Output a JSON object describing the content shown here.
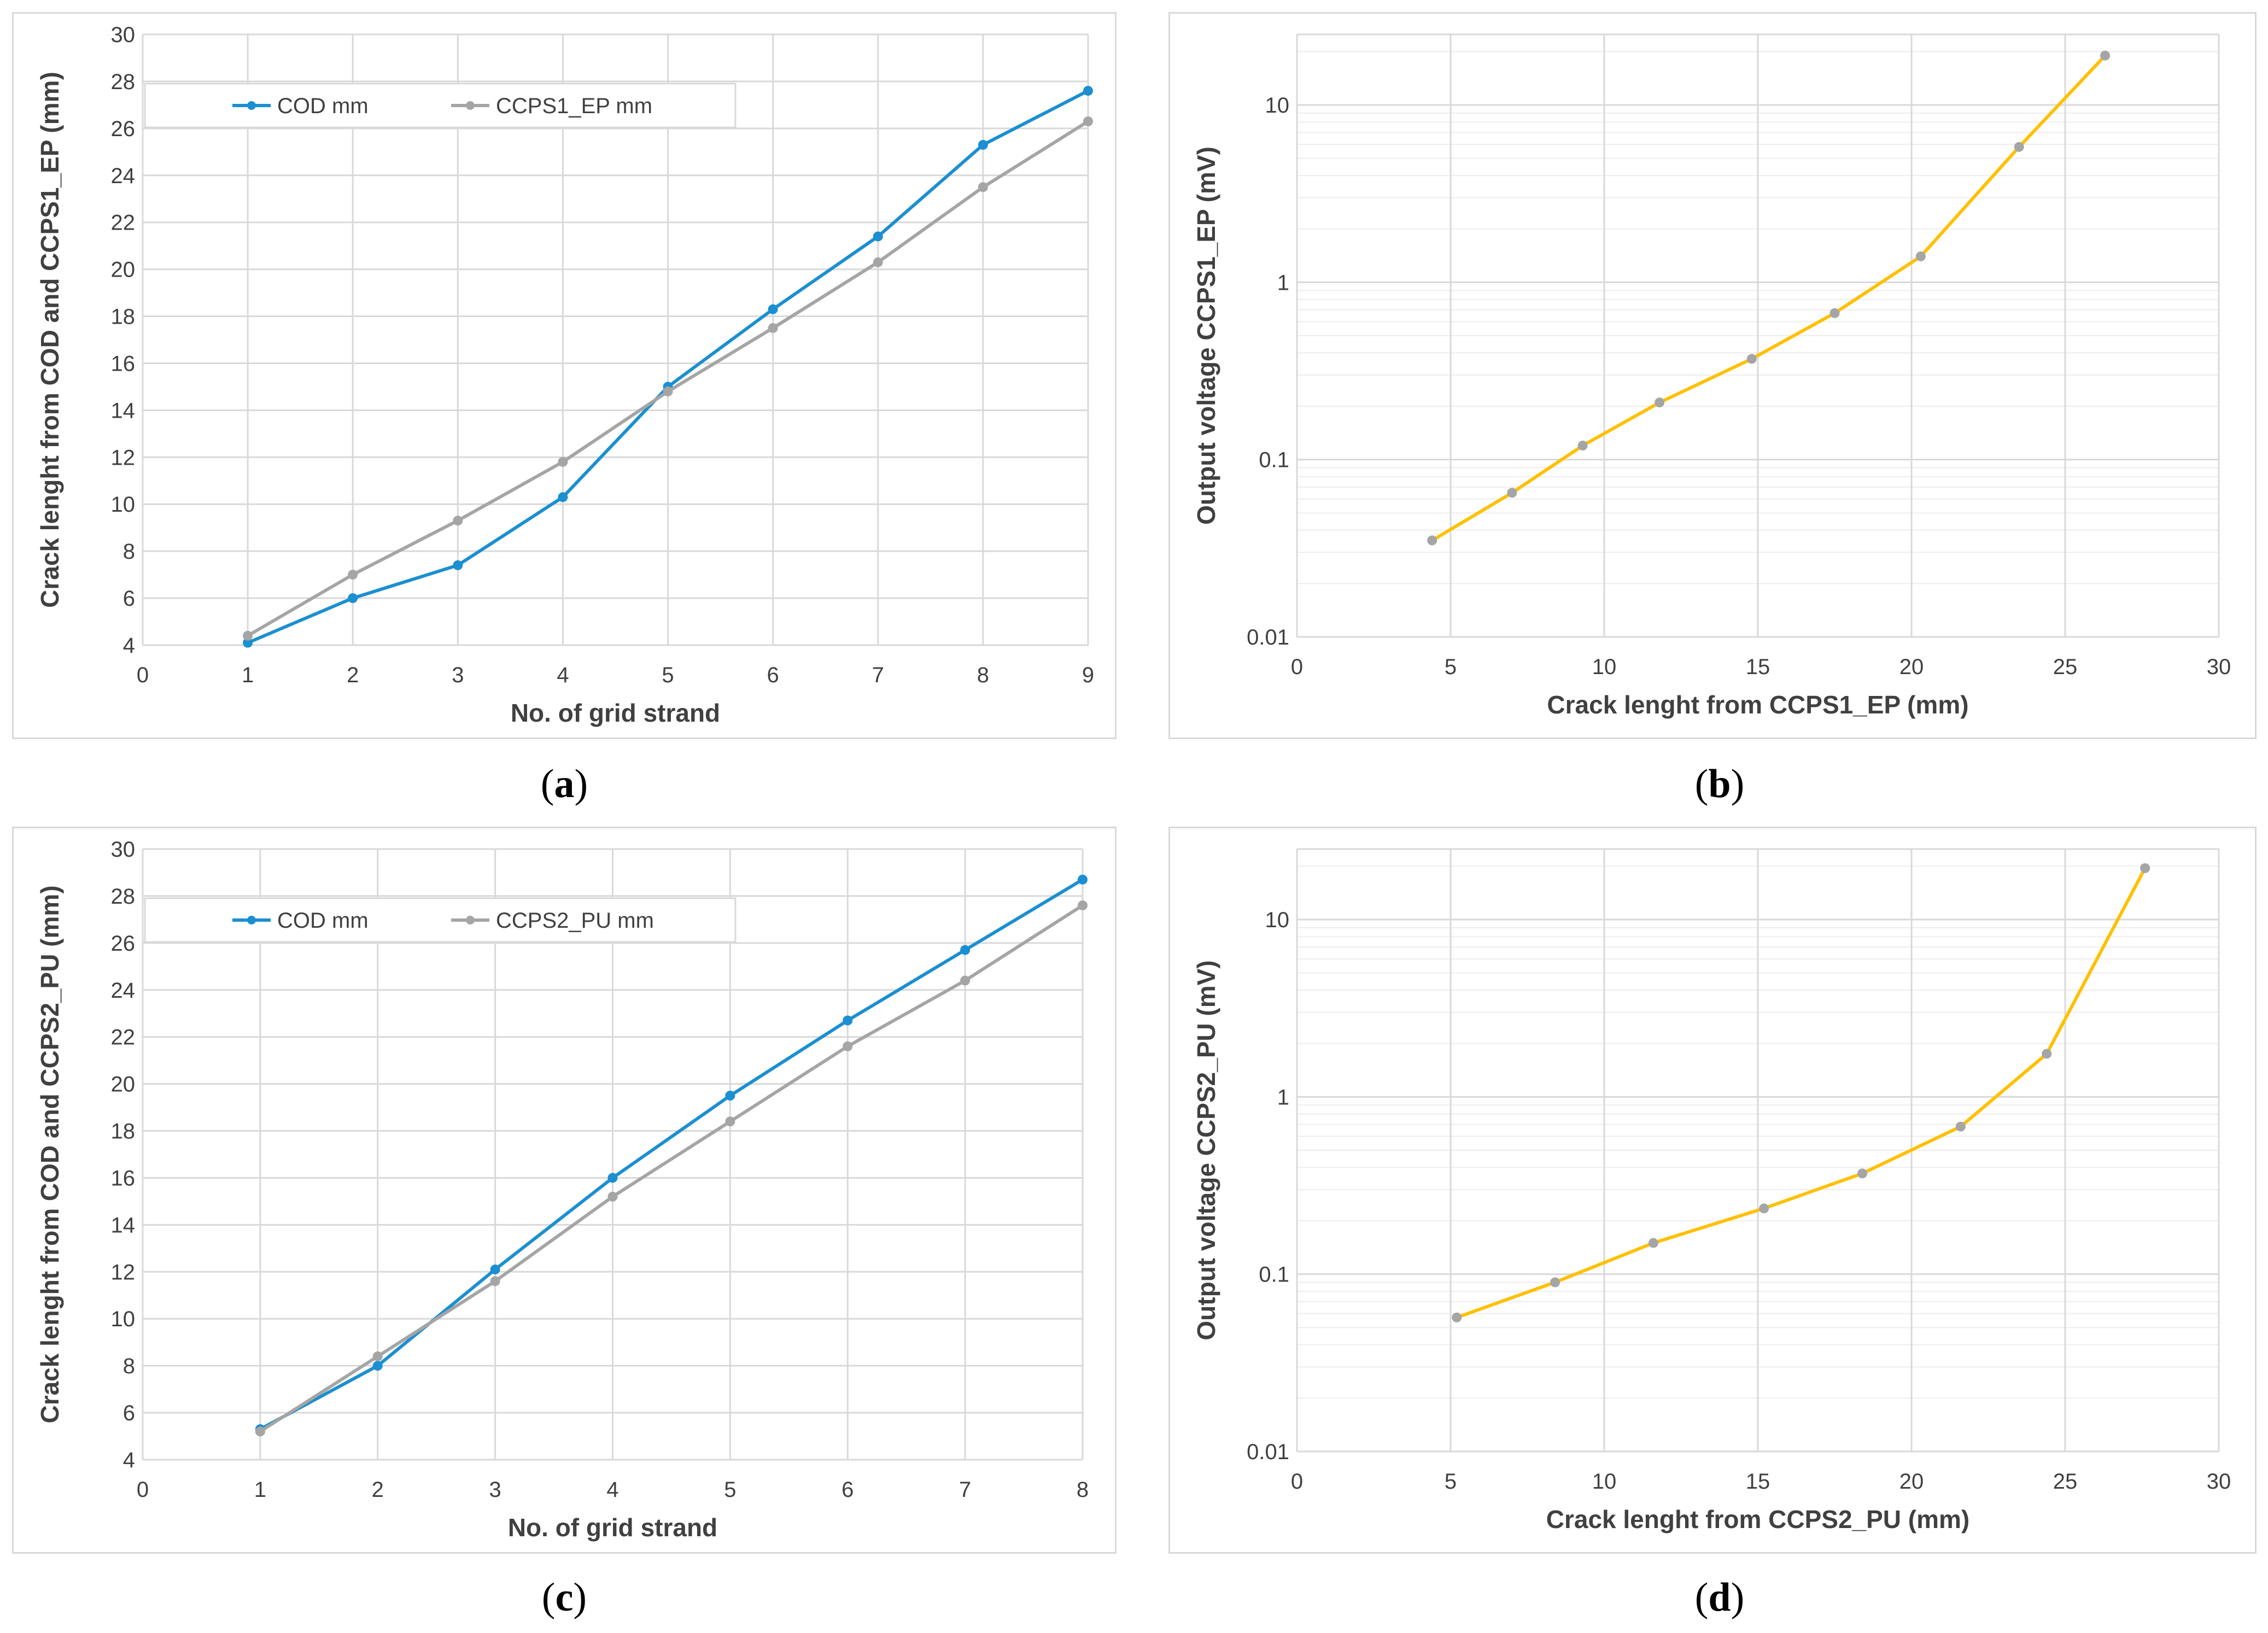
{
  "captions": [
    "a",
    "b",
    "c",
    "d"
  ],
  "chart_data": [
    {
      "id": "a",
      "type": "line",
      "xlabel": "No. of grid strand",
      "ylabel": "Crack lenght from COD and CCPS1_EP (mm)",
      "xlim": [
        0,
        9
      ],
      "ylim": [
        4,
        30
      ],
      "xstep": 1,
      "ystep": 2,
      "xticks": [
        "0",
        "1",
        "2",
        "3",
        "4",
        "5",
        "6",
        "7",
        "8",
        "9"
      ],
      "yticks": [
        "4",
        "6",
        "8",
        "10",
        "12",
        "14",
        "16",
        "18",
        "20",
        "22",
        "24",
        "26",
        "28",
        "30"
      ],
      "legend": "top-left",
      "x": [
        1,
        2,
        3,
        4,
        5,
        6,
        7,
        8,
        9
      ],
      "series": [
        {
          "name": "COD mm",
          "color": "#1b8fd1",
          "values": [
            4.1,
            6.0,
            7.4,
            10.3,
            15.0,
            18.3,
            21.4,
            25.3,
            27.6
          ]
        },
        {
          "name": "CCPS1_EP mm",
          "color": "#a5a5a5",
          "values": [
            4.4,
            7.0,
            9.3,
            11.8,
            14.8,
            17.5,
            20.3,
            23.5,
            26.3
          ]
        }
      ]
    },
    {
      "id": "b",
      "type": "line",
      "yscale": "log",
      "xlabel": "Crack lenght from CCPS1_EP (mm)",
      "ylabel": "Output voltage CCPS1_EP (mV)",
      "xlim": [
        0,
        30
      ],
      "ylim": [
        0.01,
        25
      ],
      "xstep": 5,
      "xticks": [
        "0",
        "5",
        "10",
        "15",
        "20",
        "25",
        "30"
      ],
      "yticks": [
        "0.01",
        "0.1",
        "1",
        "10"
      ],
      "series": [
        {
          "name": "CCPS1_EP",
          "color": "#ffc000",
          "x": [
            4.4,
            7.0,
            9.3,
            11.8,
            14.8,
            17.5,
            20.3,
            23.5,
            26.3
          ],
          "values": [
            0.035,
            0.065,
            0.12,
            0.21,
            0.37,
            0.67,
            1.4,
            5.8,
            19
          ]
        }
      ]
    },
    {
      "id": "c",
      "type": "line",
      "xlabel": "No. of grid strand",
      "ylabel": "Crack lenght from COD and CCPS2_PU (mm)",
      "xlim": [
        0,
        8
      ],
      "ylim": [
        4,
        30
      ],
      "xstep": 1,
      "ystep": 2,
      "xticks": [
        "0",
        "1",
        "2",
        "3",
        "4",
        "5",
        "6",
        "7",
        "8"
      ],
      "yticks": [
        "4",
        "6",
        "8",
        "10",
        "12",
        "14",
        "16",
        "18",
        "20",
        "22",
        "24",
        "26",
        "28",
        "30"
      ],
      "legend": "top-left",
      "x": [
        1,
        2,
        3,
        4,
        5,
        6,
        7,
        8
      ],
      "series": [
        {
          "name": "COD mm",
          "color": "#1b8fd1",
          "values": [
            5.3,
            8.0,
            12.1,
            16.0,
            19.5,
            22.7,
            25.7,
            28.7
          ]
        },
        {
          "name": "CCPS2_PU mm",
          "color": "#a5a5a5",
          "values": [
            5.2,
            8.4,
            11.6,
            15.2,
            18.4,
            21.6,
            24.4,
            27.6
          ]
        }
      ]
    },
    {
      "id": "d",
      "type": "line",
      "yscale": "log",
      "xlabel": "Crack lenght from CCPS2_PU (mm)",
      "ylabel": "Output voltage CCPS2_PU (mV)",
      "xlim": [
        0,
        30
      ],
      "ylim": [
        0.01,
        25
      ],
      "xstep": 5,
      "xticks": [
        "0",
        "5",
        "10",
        "15",
        "20",
        "25",
        "30"
      ],
      "yticks": [
        "0.01",
        "0.1",
        "1",
        "10"
      ],
      "series": [
        {
          "name": "CCPS2_PU",
          "color": "#ffc000",
          "x": [
            5.2,
            8.4,
            11.6,
            15.2,
            18.4,
            21.6,
            24.4,
            27.6
          ],
          "values": [
            0.057,
            0.09,
            0.15,
            0.235,
            0.37,
            0.68,
            1.75,
            19.5
          ]
        }
      ]
    }
  ]
}
